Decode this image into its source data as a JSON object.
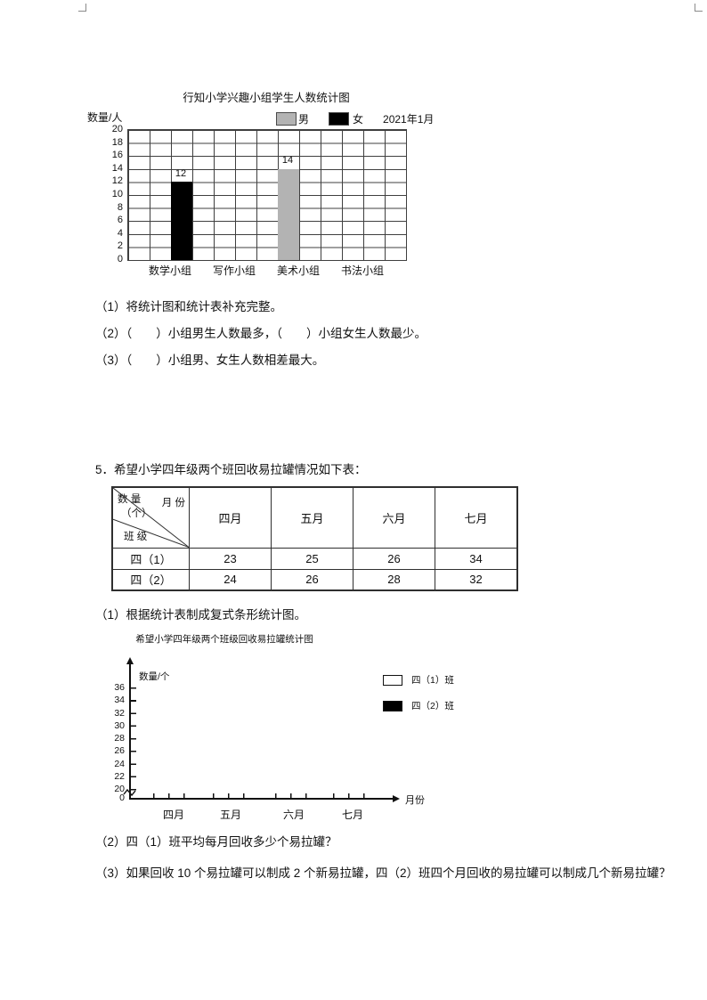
{
  "chart1_questions": {
    "q1": "（1）将统计图和统计表补充完整。",
    "q2": "（2）（　　）小组男生人数最多，（　　）小组女生人数最少。",
    "q3": "（3）（　　）小组男、女生人数相差最大。"
  },
  "section5": {
    "heading": "5．希望小学四年级两个班回收易拉罐情况如下表：",
    "table": {
      "corner": {
        "quantity": "数 量",
        "unit": "（个）",
        "month": "月 份",
        "cls": "班 级"
      },
      "columns": [
        "四月",
        "五月",
        "六月",
        "七月"
      ],
      "rows": [
        {
          "label": "四（1）",
          "values": [
            23,
            25,
            26,
            34
          ]
        },
        {
          "label": "四（2）",
          "values": [
            24,
            26,
            28,
            32
          ]
        }
      ]
    },
    "q1": "（1）根据统计表制成复式条形统计图。",
    "q2": "（2）四（1）班平均每月回收多少个易拉罐？",
    "q3": "（3）如果回收 10 个易拉罐可以制成 2 个新易拉罐，四（2）班四个月回收的易拉罐可以制成几个新易拉罐？"
  },
  "chart_data": [
    {
      "type": "bar",
      "title": "行知小学兴趣小组学生人数统计图",
      "annotation": "2021年1月",
      "ylabel": "数量/人",
      "ylim": [
        0,
        20
      ],
      "ytick_step": 2,
      "yticks_display": [
        "20",
        "18",
        "16",
        "14",
        "12",
        "10",
        "8",
        "6",
        "4",
        "2",
        "0"
      ],
      "grid": true,
      "legend_position": "top",
      "categories": [
        "数学小组",
        "写作小组",
        "美术小组",
        "书法小组"
      ],
      "series": [
        {
          "name": "男",
          "color": "#b3b3b3",
          "values": [
            null,
            null,
            14,
            null
          ]
        },
        {
          "name": "女",
          "color": "#000000",
          "values": [
            12,
            null,
            null,
            null
          ]
        }
      ]
    },
    {
      "type": "bar",
      "title": "希望小学四年级两个班级回收易拉罐统计图",
      "ylabel": "数量/个",
      "xlabel": "月份",
      "yticks": [
        0,
        20,
        22,
        24,
        26,
        28,
        30,
        32,
        34,
        36
      ],
      "axis_break_between": [
        0,
        20
      ],
      "grid": false,
      "legend_position": "top-right",
      "categories": [
        "四月",
        "五月",
        "六月",
        "七月"
      ],
      "series": [
        {
          "name": "四（1）班",
          "color": "#ffffff",
          "values": [
            null,
            null,
            null,
            null
          ]
        },
        {
          "name": "四（2）班",
          "color": "#000000",
          "values": [
            null,
            null,
            null,
            null
          ]
        }
      ]
    }
  ]
}
